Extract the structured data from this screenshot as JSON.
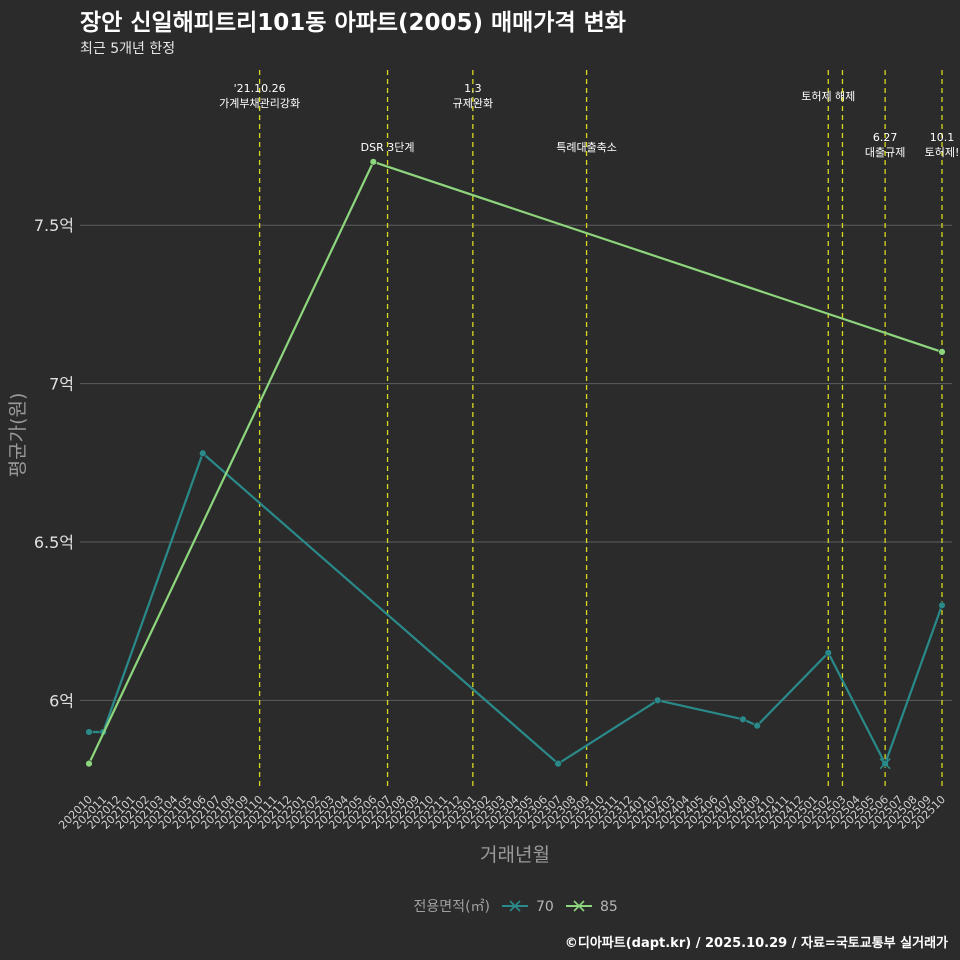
{
  "chart_data": {
    "type": "line",
    "title": "장안 신일해피트리101동 아파트(2005) 매매가격 변화",
    "subtitle": "최근 5개년 한정",
    "xlabel": "거래년월",
    "ylabel": "평균가(원)",
    "ylim": [
      5.72,
      7.99
    ],
    "y_ticks": [
      {
        "value": 6.0,
        "label": "6억"
      },
      {
        "value": 6.5,
        "label": "6.5억"
      },
      {
        "value": 7.0,
        "label": "7억"
      },
      {
        "value": 7.5,
        "label": "7.5억"
      }
    ],
    "categories": [
      "202010",
      "202011",
      "202012",
      "202101",
      "202102",
      "202103",
      "202104",
      "202105",
      "202106",
      "202107",
      "202108",
      "202109",
      "202110",
      "202111",
      "202112",
      "202201",
      "202202",
      "202203",
      "202204",
      "202205",
      "202206",
      "202207",
      "202208",
      "202209",
      "202210",
      "202211",
      "202212",
      "202301",
      "202302",
      "202303",
      "202304",
      "202305",
      "202306",
      "202307",
      "202308",
      "202309",
      "202310",
      "202311",
      "202312",
      "202401",
      "202402",
      "202403",
      "202404",
      "202405",
      "202406",
      "202407",
      "202408",
      "202409",
      "202410",
      "202411",
      "202412",
      "202501",
      "202502",
      "202503",
      "202504",
      "202505",
      "202506",
      "202507",
      "202508",
      "202509",
      "202510"
    ],
    "series": [
      {
        "name": "70",
        "color": "#2a8a8a",
        "points": [
          [
            "202010",
            5.9
          ],
          [
            "202011",
            5.9
          ],
          [
            "202106",
            6.78
          ],
          [
            "202307",
            5.8
          ],
          [
            "202402",
            6.0
          ],
          [
            "202408",
            5.94
          ],
          [
            "202409",
            5.92
          ],
          [
            "202502",
            6.15
          ],
          [
            "202506",
            5.8
          ],
          [
            "202510",
            6.3
          ]
        ]
      },
      {
        "name": "85",
        "color": "#8ed67e",
        "points": [
          [
            "202010",
            5.8
          ],
          [
            "202206",
            7.7
          ],
          [
            "202510",
            7.1
          ]
        ]
      }
    ],
    "vlines": [
      {
        "x": "202110",
        "label": "'21.10.26\n가계부채관리강화",
        "row": 0
      },
      {
        "x": "202207",
        "label": "DSR 3단계",
        "row": 2
      },
      {
        "x": "202301",
        "label": "1.3\n규제완화",
        "row": 0
      },
      {
        "x": "202309",
        "label": "특례대출축소",
        "row": 2
      },
      {
        "x": "202502",
        "label": "토허제 해제",
        "row": 1
      },
      {
        "x": "202503",
        "label": "",
        "row": 1
      },
      {
        "x": "202506",
        "label": "6.27\n대출규제",
        "row": 3
      },
      {
        "x": "202510",
        "label": "10.1\n토허제!",
        "row": 3
      }
    ],
    "legend": {
      "title": "전용면적(㎡)",
      "position": "bottom",
      "items": [
        "70",
        "85"
      ]
    }
  },
  "footer": {
    "credit": "©디아파트(dapt.kr) / 2025.10.29 / 자료=국토교통부 실거래가"
  }
}
